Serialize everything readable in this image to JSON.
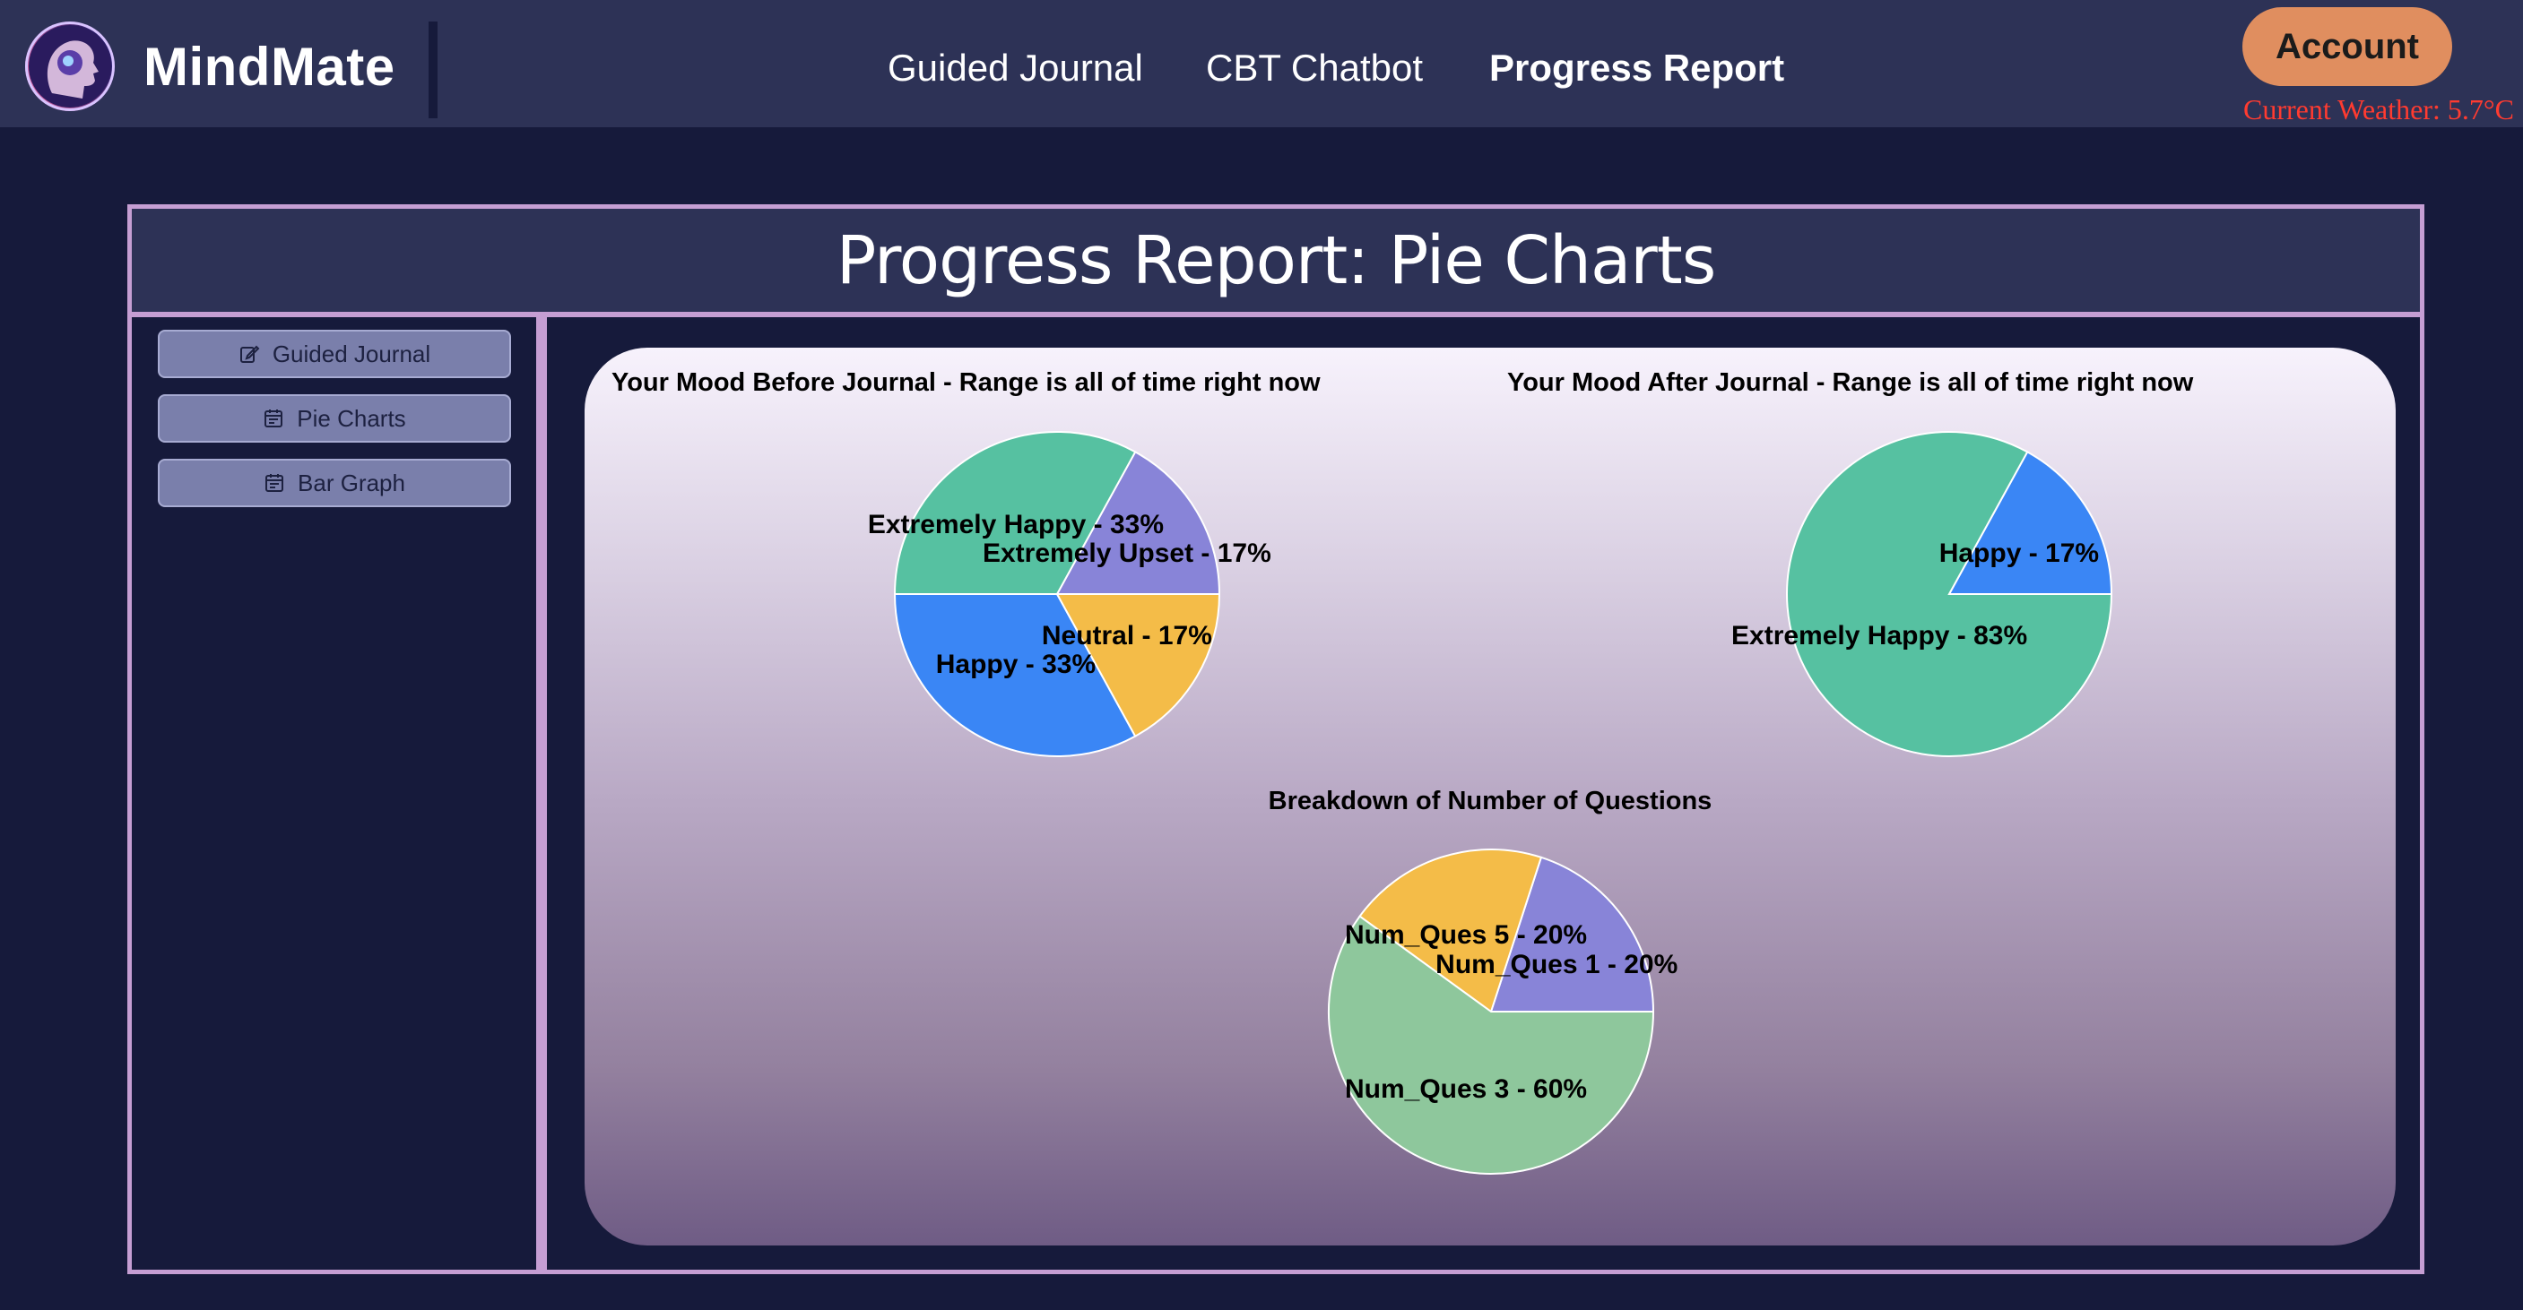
{
  "app": {
    "brand": "MindMate",
    "nav": [
      {
        "label": "Guided Journal",
        "active": false
      },
      {
        "label": "CBT Chatbot",
        "active": false
      },
      {
        "label": "Progress Report",
        "active": true
      }
    ],
    "account_label": "Account",
    "weather": "Current Weather: 5.7°C"
  },
  "page": {
    "title": "Progress Report: Pie Charts"
  },
  "sidebar": {
    "items": [
      {
        "label": "Guided Journal",
        "icon": "edit-icon"
      },
      {
        "label": "Pie Charts",
        "icon": "calendar-icon"
      },
      {
        "label": "Bar Graph",
        "icon": "calendar-icon"
      }
    ]
  },
  "colors": {
    "extremely_upset": "#8884d8",
    "extremely_happy": "#56c1a1",
    "happy": "#3a86f5",
    "neutral": "#f4bc48",
    "num_ques_3": "#8ec79c"
  },
  "chart_data": [
    {
      "type": "pie",
      "title": "Your Mood Before Journal - Range is all of time right now",
      "slices": [
        {
          "label": "Extremely Upset",
          "value": 17,
          "color": "#8884d8"
        },
        {
          "label": "Extremely Happy",
          "value": 33,
          "color": "#56c1a1"
        },
        {
          "label": "Happy",
          "value": 33,
          "color": "#3a86f5"
        },
        {
          "label": "Neutral",
          "value": 17,
          "color": "#f4bc48"
        }
      ]
    },
    {
      "type": "pie",
      "title": "Your Mood After Journal - Range is all of time right now",
      "slices": [
        {
          "label": "Happy",
          "value": 17,
          "color": "#3a86f5"
        },
        {
          "label": "Extremely Happy",
          "value": 83,
          "color": "#56c1a1"
        }
      ]
    },
    {
      "type": "pie",
      "title": "Breakdown of Number of Questions",
      "slices": [
        {
          "label": "Num_Ques 1",
          "value": 20,
          "color": "#8884d8"
        },
        {
          "label": "Num_Ques 5",
          "value": 20,
          "color": "#f4bc48"
        },
        {
          "label": "Num_Ques 3",
          "value": 60,
          "color": "#8ec79c"
        }
      ]
    }
  ]
}
